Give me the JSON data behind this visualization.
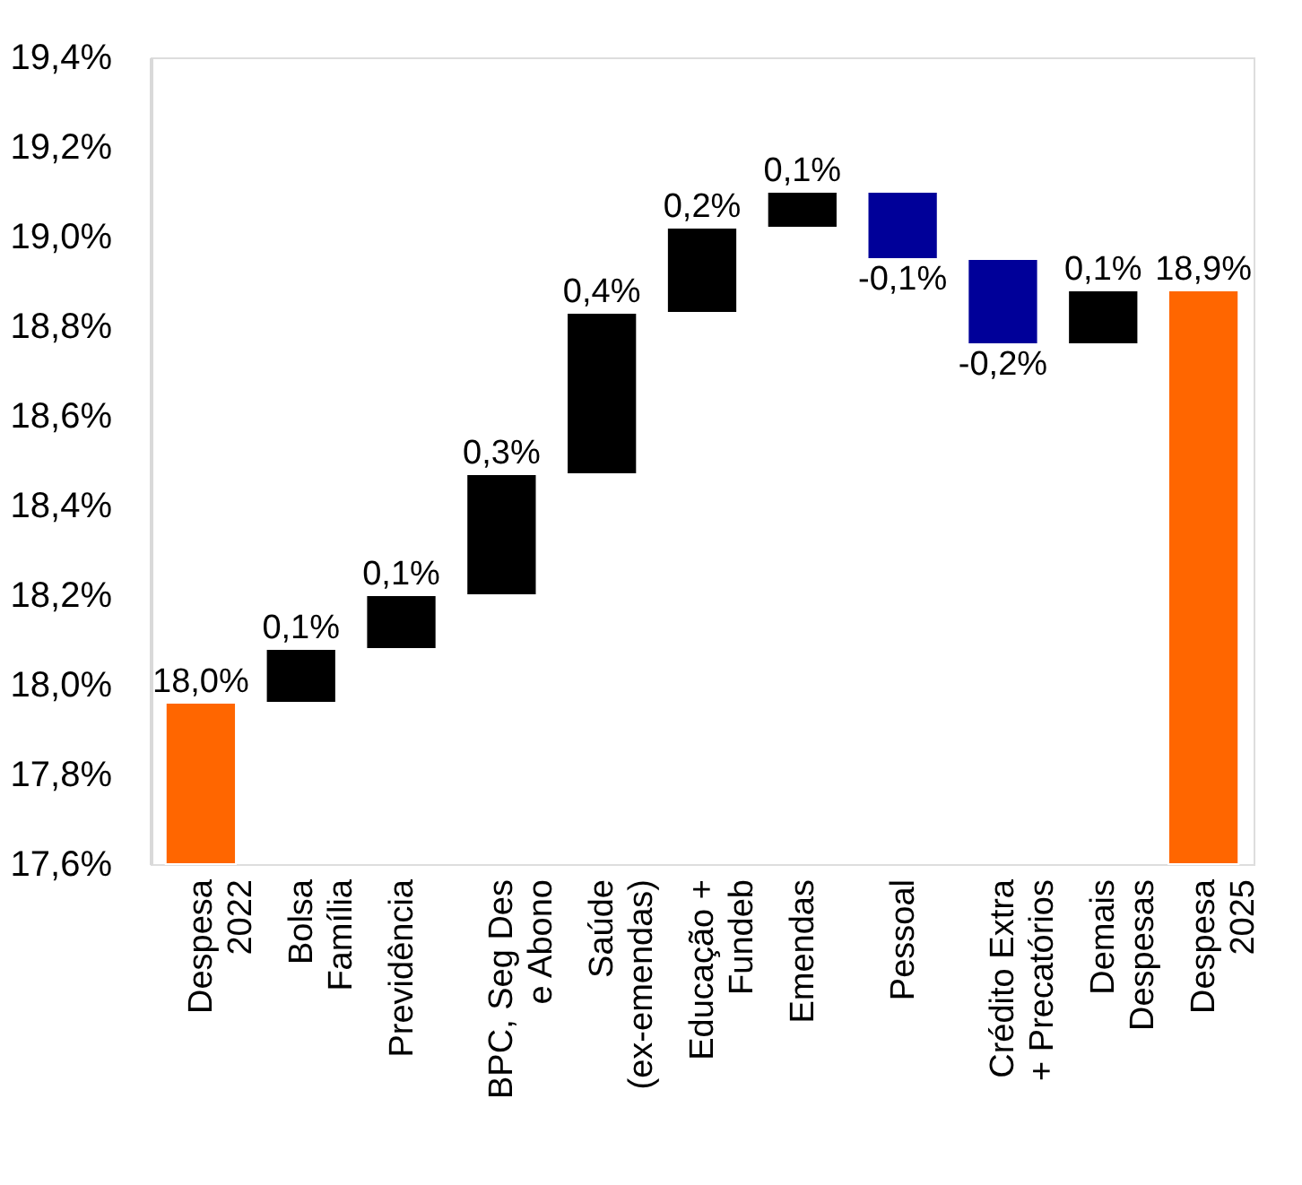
{
  "chart_data": {
    "type": "bar",
    "categories": [
      "Despesa\n2022",
      "Bolsa\nFamília",
      "Previdência",
      "BPC, Seg Des\ne Abono",
      "Saúde\n(ex-emendas)",
      "Educação +\nFundeb",
      "Emendas",
      "Pessoal",
      "Crédito Extra\n+ Precatórios",
      "Demais\nDespesas",
      "Despesa\n2025"
    ],
    "base": [
      17.6,
      17.96,
      18.08,
      18.2,
      18.47,
      18.83,
      19.02,
      19.1,
      18.95,
      18.76,
      17.6
    ],
    "values": [
      0.36,
      0.12,
      0.12,
      0.27,
      0.36,
      0.19,
      0.08,
      -0.15,
      -0.19,
      0.12,
      1.28
    ],
    "colors": [
      "#ff6600",
      "#000000",
      "#000000",
      "#000000",
      "#000000",
      "#000000",
      "#000000",
      "#000099",
      "#000099",
      "#000000",
      "#ff6600"
    ],
    "value_labels": [
      "18,0%",
      "0,1%",
      "0,1%",
      "0,3%",
      "0,4%",
      "0,2%",
      "0,1%",
      "-0,1%",
      "-0,2%",
      "0,1%",
      "18,9%"
    ],
    "ylim": [
      17.6,
      19.4
    ],
    "yticks": [
      {
        "value": 17.6,
        "label": "17,6%"
      },
      {
        "value": 17.8,
        "label": "17,8%"
      },
      {
        "value": 18.0,
        "label": "18,0%"
      },
      {
        "value": 18.2,
        "label": "18,2%"
      },
      {
        "value": 18.4,
        "label": "18,4%"
      },
      {
        "value": 18.6,
        "label": "18,6%"
      },
      {
        "value": 18.8,
        "label": "18,8%"
      },
      {
        "value": 19.0,
        "label": "19,0%"
      },
      {
        "value": 19.2,
        "label": "19,2%"
      },
      {
        "value": 19.4,
        "label": "19,4%"
      }
    ],
    "grid": false
  }
}
